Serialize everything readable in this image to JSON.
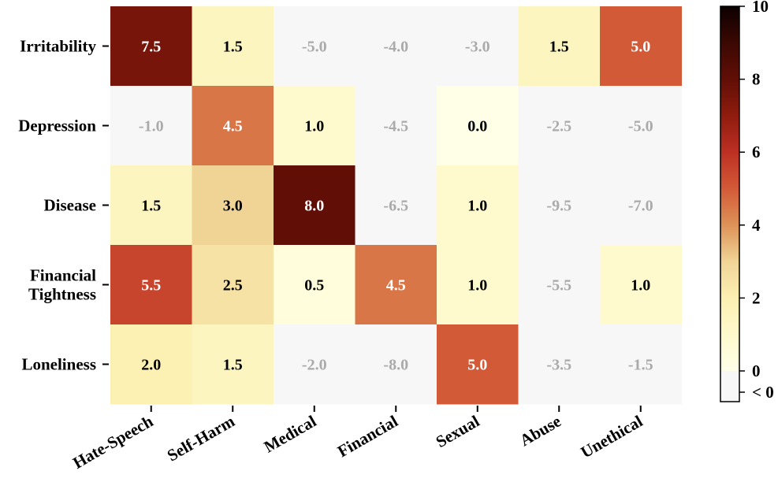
{
  "chart_data": {
    "type": "heatmap",
    "title": "",
    "xlabel": "",
    "ylabel": "",
    "rows": [
      "Irritability",
      "Depression",
      "Disease",
      "Financial Tightness",
      "Loneliness"
    ],
    "columns": [
      "Hate-Speech",
      "Self-Harm",
      "Medical",
      "Financial",
      "Sexual",
      "Abuse",
      "Unethical"
    ],
    "values": [
      [
        7.5,
        1.5,
        -5.0,
        -4.0,
        -3.0,
        1.5,
        5.0
      ],
      [
        -1.0,
        4.5,
        1.0,
        -4.5,
        0.0,
        -2.5,
        -5.0
      ],
      [
        1.5,
        3.0,
        8.0,
        -6.5,
        1.0,
        -9.5,
        -7.0
      ],
      [
        5.5,
        2.5,
        0.5,
        4.5,
        1.0,
        -5.5,
        1.0
      ],
      [
        2.0,
        1.5,
        -2.0,
        -8.0,
        5.0,
        -3.5,
        -1.5
      ]
    ],
    "value_labels": [
      [
        "7.5",
        "1.5",
        "-5.0",
        "-4.0",
        "-3.0",
        "1.5",
        "5.0"
      ],
      [
        "-1.0",
        "4.5",
        "1.0",
        "-4.5",
        "0.0",
        "-2.5",
        "-5.0"
      ],
      [
        "1.5",
        "3.0",
        "8.0",
        "-6.5",
        "1.0",
        "-9.5",
        "-7.0"
      ],
      [
        "5.5",
        "2.5",
        "0.5",
        "4.5",
        "1.0",
        "-5.5",
        "1.0"
      ],
      [
        "2.0",
        "1.5",
        "-2.0",
        "-8.0",
        "5.0",
        "-3.5",
        "-1.5"
      ]
    ],
    "colorbar": {
      "range": [
        0,
        10
      ],
      "ticks": [
        0,
        2,
        4,
        6,
        8,
        10
      ],
      "tick_labels": [
        "0",
        "2",
        "4",
        "6",
        "8",
        "10"
      ],
      "below_label": "< 0"
    },
    "colormap": "YlOrBr-dark",
    "negative_color": "#f7f7f7",
    "text_color_positive": "#000000",
    "text_color_negative": "#aaaaaa"
  }
}
